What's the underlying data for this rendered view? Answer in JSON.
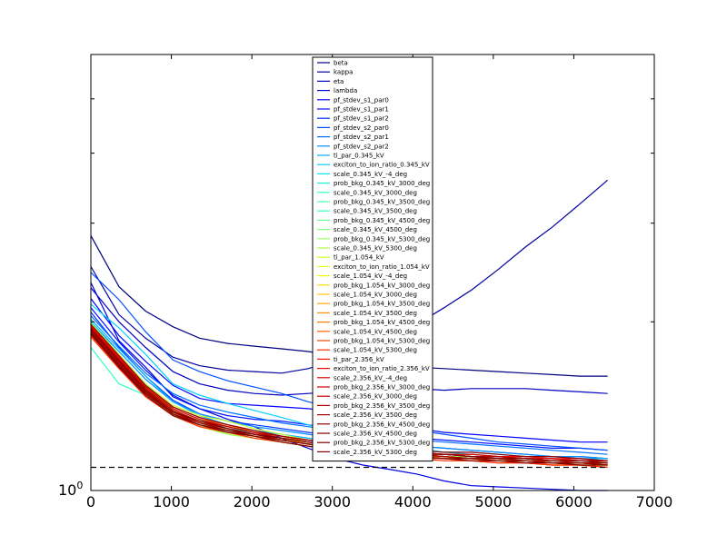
{
  "chart_data": {
    "type": "line",
    "title": "",
    "xlabel": "",
    "ylabel": "",
    "y_scale": "log",
    "xlim": [
      0,
      7000
    ],
    "ylim": [
      1.0,
      6.0
    ],
    "xticks": [
      0,
      1000,
      2000,
      3000,
      4000,
      5000,
      6000,
      7000
    ],
    "xtick_labels": [
      "0",
      "1000",
      "2000",
      "3000",
      "4000",
      "5000",
      "6000",
      "7000"
    ],
    "ytick_label": "10",
    "ytick_label_exp": "0",
    "reference_line": {
      "y": 1.1,
      "style": "dashed"
    },
    "legend_location": "upper center",
    "x": [
      0,
      350,
      680,
      1020,
      1350,
      1700,
      2030,
      2370,
      2700,
      3050,
      3380,
      3720,
      4050,
      4390,
      4730,
      5060,
      5400,
      5730,
      6080,
      6420
    ],
    "series": [
      {
        "name": "beta",
        "color": "#00007f",
        "values": [
          2.85,
          2.31,
          2.09,
          1.96,
          1.87,
          1.83,
          1.81,
          1.79,
          1.77,
          1.74,
          1.71,
          1.68,
          1.66,
          1.65,
          1.64,
          1.63,
          1.62,
          1.61,
          1.6,
          1.6
        ]
      },
      {
        "name": "kappa",
        "color": "#00009f",
        "values": [
          2.51,
          2.06,
          1.87,
          1.73,
          1.67,
          1.64,
          1.63,
          1.62,
          1.65,
          1.71,
          1.77,
          1.86,
          1.98,
          2.12,
          2.28,
          2.48,
          2.72,
          2.95,
          3.25,
          3.58
        ]
      },
      {
        "name": "eta",
        "color": "#0000bf",
        "values": [
          2.3,
          2.0,
          1.8,
          1.63,
          1.55,
          1.51,
          1.49,
          1.48,
          1.49,
          1.5,
          1.51,
          1.52,
          1.52,
          1.51,
          1.52,
          1.52,
          1.52,
          1.51,
          1.5,
          1.49
        ]
      },
      {
        "name": "lambda",
        "color": "#0000df",
        "values": [
          2.35,
          1.85,
          1.66,
          1.47,
          1.4,
          1.34,
          1.3,
          1.24,
          1.19,
          1.14,
          1.11,
          1.09,
          1.07,
          1.04,
          1.02,
          1.015,
          1.01,
          1.005,
          1.0,
          1.0
        ]
      },
      {
        "name": "pf_stdev_s1_par0",
        "color": "#0000ff",
        "values": [
          2.2,
          1.89,
          1.7,
          1.54,
          1.46,
          1.43,
          1.42,
          1.41,
          1.4,
          1.38,
          1.34,
          1.31,
          1.29,
          1.27,
          1.26,
          1.25,
          1.24,
          1.23,
          1.22,
          1.22
        ]
      },
      {
        "name": "pf_stdev_s1_par1",
        "color": "#0010ff",
        "values": [
          2.12,
          1.84,
          1.64,
          1.48,
          1.4,
          1.36,
          1.34,
          1.33,
          1.31,
          1.29,
          1.27,
          1.25,
          1.24,
          1.23,
          1.22,
          1.21,
          1.2,
          1.19,
          1.19,
          1.18
        ]
      },
      {
        "name": "pf_stdev_s1_par2",
        "color": "#0030ff",
        "values": [
          2.08,
          1.8,
          1.6,
          1.45,
          1.37,
          1.33,
          1.31,
          1.29,
          1.27,
          1.25,
          1.23,
          1.21,
          1.2,
          1.19,
          1.18,
          1.17,
          1.16,
          1.15,
          1.15,
          1.14
        ]
      },
      {
        "name": "pf_stdev_s2_par0",
        "color": "#0050ff",
        "values": [
          2.45,
          2.19,
          1.92,
          1.71,
          1.63,
          1.57,
          1.53,
          1.49,
          1.44,
          1.4,
          1.35,
          1.31,
          1.28,
          1.26,
          1.24,
          1.22,
          1.21,
          1.2,
          1.19,
          1.18
        ]
      },
      {
        "name": "pf_stdev_s2_par1",
        "color": "#0070ff",
        "values": [
          2.05,
          1.81,
          1.62,
          1.49,
          1.42,
          1.38,
          1.35,
          1.32,
          1.3,
          1.28,
          1.26,
          1.24,
          1.23,
          1.22,
          1.21,
          1.2,
          1.19,
          1.18,
          1.17,
          1.16
        ]
      },
      {
        "name": "pf_stdev_s2_par2",
        "color": "#0090ff",
        "values": [
          2.0,
          1.77,
          1.58,
          1.44,
          1.37,
          1.33,
          1.3,
          1.28,
          1.26,
          1.24,
          1.22,
          1.21,
          1.2,
          1.19,
          1.18,
          1.17,
          1.16,
          1.15,
          1.15,
          1.14
        ]
      },
      {
        "name": "ti_par_0.345_kV",
        "color": "#00b0ff",
        "values": [
          2.02,
          1.79,
          1.6,
          1.44,
          1.36,
          1.31,
          1.28,
          1.26,
          1.24,
          1.22,
          1.21,
          1.19,
          1.18,
          1.17,
          1.17,
          1.16,
          1.15,
          1.15,
          1.14,
          1.14
        ]
      },
      {
        "name": "exciton_to_ion_ratio_0.345_kV",
        "color": "#00d0ff",
        "values": [
          2.15,
          1.95,
          1.75,
          1.55,
          1.48,
          1.43,
          1.39,
          1.35,
          1.31,
          1.27,
          1.24,
          1.21,
          1.19,
          1.17,
          1.16,
          1.15,
          1.14,
          1.13,
          1.12,
          1.12
        ]
      },
      {
        "name": "scale_0.345_kV_-4_deg",
        "color": "#00e8f0",
        "values": [
          2.0,
          1.75,
          1.55,
          1.4,
          1.34,
          1.29,
          1.27,
          1.25,
          1.23,
          1.21,
          1.2,
          1.18,
          1.17,
          1.16,
          1.16,
          1.15,
          1.14,
          1.14,
          1.13,
          1.13
        ]
      },
      {
        "name": "prob_bkg_0.345_kV_3000_deg",
        "color": "#10f8e0",
        "values": [
          1.98,
          1.74,
          1.54,
          1.39,
          1.33,
          1.28,
          1.26,
          1.24,
          1.22,
          1.2,
          1.19,
          1.17,
          1.16,
          1.16,
          1.15,
          1.14,
          1.14,
          1.13,
          1.13,
          1.12
        ]
      },
      {
        "name": "scale_0.345_kV_3000_deg",
        "color": "#30ffc7",
        "values": [
          1.96,
          1.72,
          1.53,
          1.38,
          1.32,
          1.28,
          1.25,
          1.23,
          1.21,
          1.2,
          1.18,
          1.17,
          1.16,
          1.15,
          1.15,
          1.14,
          1.13,
          1.13,
          1.12,
          1.12
        ]
      },
      {
        "name": "prob_bkg_0.345_kV_3500_deg",
        "color": "#4affad",
        "values": [
          1.95,
          1.71,
          1.52,
          1.38,
          1.32,
          1.27,
          1.25,
          1.23,
          1.21,
          1.19,
          1.18,
          1.17,
          1.16,
          1.15,
          1.14,
          1.14,
          1.13,
          1.13,
          1.12,
          1.12
        ]
      },
      {
        "name": "scale_0.345_kV_3500_deg",
        "color": "#2fffc7",
        "values": [
          1.8,
          1.55,
          1.48,
          1.36,
          1.31,
          1.27,
          1.25,
          1.23,
          1.21,
          1.19,
          1.18,
          1.17,
          1.16,
          1.15,
          1.15,
          1.14,
          1.13,
          1.13,
          1.12,
          1.12
        ]
      },
      {
        "name": "prob_bkg_0.345_kV_4500_deg",
        "color": "#63ff94",
        "values": [
          1.94,
          1.7,
          1.51,
          1.37,
          1.31,
          1.27,
          1.24,
          1.22,
          1.2,
          1.19,
          1.17,
          1.16,
          1.15,
          1.15,
          1.14,
          1.13,
          1.13,
          1.12,
          1.12,
          1.11
        ]
      },
      {
        "name": "scale_0.345_kV_4500_deg",
        "color": "#7dff7a",
        "values": [
          1.93,
          1.69,
          1.51,
          1.37,
          1.31,
          1.26,
          1.24,
          1.22,
          1.2,
          1.18,
          1.17,
          1.16,
          1.15,
          1.14,
          1.14,
          1.13,
          1.13,
          1.12,
          1.12,
          1.11
        ]
      },
      {
        "name": "prob_bkg_0.345_kV_5300_deg",
        "color": "#97ff60",
        "values": [
          1.97,
          1.73,
          1.53,
          1.39,
          1.33,
          1.28,
          1.25,
          1.23,
          1.21,
          1.2,
          1.18,
          1.17,
          1.16,
          1.15,
          1.15,
          1.14,
          1.13,
          1.13,
          1.12,
          1.12
        ]
      },
      {
        "name": "scale_0.345_kV_5300_deg",
        "color": "#b0ff47",
        "values": [
          1.92,
          1.68,
          1.5,
          1.36,
          1.3,
          1.26,
          1.24,
          1.22,
          1.2,
          1.18,
          1.17,
          1.16,
          1.15,
          1.14,
          1.14,
          1.13,
          1.12,
          1.12,
          1.11,
          1.11
        ]
      },
      {
        "name": "ti_par_1.054_kV",
        "color": "#caff2d",
        "values": [
          1.99,
          1.75,
          1.55,
          1.42,
          1.36,
          1.33,
          1.29,
          1.26,
          1.23,
          1.21,
          1.19,
          1.18,
          1.17,
          1.16,
          1.15,
          1.14,
          1.14,
          1.13,
          1.13,
          1.12
        ]
      },
      {
        "name": "exciton_to_ion_ratio_1.054_kV",
        "color": "#e3ff13",
        "values": [
          1.96,
          1.72,
          1.53,
          1.41,
          1.35,
          1.31,
          1.28,
          1.25,
          1.22,
          1.2,
          1.18,
          1.17,
          1.16,
          1.15,
          1.14,
          1.14,
          1.13,
          1.13,
          1.12,
          1.12
        ]
      },
      {
        "name": "scale_1.054_kV_-4_deg",
        "color": "#f8f500",
        "values": [
          1.94,
          1.7,
          1.51,
          1.39,
          1.33,
          1.3,
          1.27,
          1.24,
          1.22,
          1.2,
          1.18,
          1.17,
          1.16,
          1.15,
          1.14,
          1.13,
          1.13,
          1.12,
          1.12,
          1.11
        ]
      },
      {
        "name": "prob_bkg_1.054_kV_3000_deg",
        "color": "#ffde00",
        "values": [
          1.93,
          1.69,
          1.5,
          1.38,
          1.32,
          1.29,
          1.26,
          1.24,
          1.21,
          1.19,
          1.18,
          1.16,
          1.15,
          1.15,
          1.14,
          1.13,
          1.13,
          1.12,
          1.12,
          1.11
        ]
      },
      {
        "name": "scale_1.054_kV_3000_deg",
        "color": "#ffc400",
        "values": [
          1.92,
          1.68,
          1.5,
          1.38,
          1.32,
          1.29,
          1.26,
          1.23,
          1.21,
          1.19,
          1.17,
          1.16,
          1.15,
          1.14,
          1.14,
          1.13,
          1.12,
          1.12,
          1.11,
          1.11
        ]
      },
      {
        "name": "prob_bkg_1.054_kV_3500_deg",
        "color": "#ffab00",
        "values": [
          1.91,
          1.67,
          1.49,
          1.37,
          1.31,
          1.28,
          1.25,
          1.23,
          1.21,
          1.19,
          1.17,
          1.16,
          1.15,
          1.14,
          1.13,
          1.13,
          1.12,
          1.12,
          1.11,
          1.11
        ]
      },
      {
        "name": "scale_1.054_kV_3500_deg",
        "color": "#ff9100",
        "values": [
          1.95,
          1.71,
          1.52,
          1.4,
          1.34,
          1.31,
          1.27,
          1.25,
          1.22,
          1.2,
          1.18,
          1.17,
          1.16,
          1.15,
          1.14,
          1.14,
          1.13,
          1.12,
          1.12,
          1.12
        ]
      },
      {
        "name": "prob_bkg_1.054_kV_4500_deg",
        "color": "#ff7800",
        "values": [
          1.9,
          1.66,
          1.49,
          1.37,
          1.31,
          1.28,
          1.25,
          1.22,
          1.2,
          1.18,
          1.17,
          1.16,
          1.15,
          1.14,
          1.13,
          1.13,
          1.12,
          1.11,
          1.11,
          1.1
        ]
      },
      {
        "name": "scale_1.054_kV_4500_deg",
        "color": "#ff5e00",
        "values": [
          1.89,
          1.66,
          1.48,
          1.36,
          1.3,
          1.27,
          1.25,
          1.22,
          1.2,
          1.18,
          1.17,
          1.15,
          1.14,
          1.14,
          1.13,
          1.12,
          1.12,
          1.11,
          1.11,
          1.1
        ]
      },
      {
        "name": "prob_bkg_1.054_kV_5300_deg",
        "color": "#ff4500",
        "values": [
          1.93,
          1.69,
          1.5,
          1.38,
          1.32,
          1.29,
          1.26,
          1.23,
          1.21,
          1.19,
          1.18,
          1.16,
          1.15,
          1.15,
          1.14,
          1.13,
          1.13,
          1.12,
          1.12,
          1.11
        ]
      },
      {
        "name": "scale_1.054_kV_5300_deg",
        "color": "#ff2b00",
        "values": [
          1.88,
          1.65,
          1.47,
          1.36,
          1.3,
          1.27,
          1.24,
          1.22,
          1.2,
          1.18,
          1.16,
          1.15,
          1.14,
          1.13,
          1.13,
          1.12,
          1.12,
          1.11,
          1.11,
          1.1
        ]
      },
      {
        "name": "ti_par_2.356_kV",
        "color": "#ff1200",
        "values": [
          1.97,
          1.73,
          1.54,
          1.41,
          1.35,
          1.31,
          1.28,
          1.25,
          1.23,
          1.21,
          1.19,
          1.18,
          1.17,
          1.16,
          1.16,
          1.15,
          1.15,
          1.14,
          1.14,
          1.13
        ]
      },
      {
        "name": "exciton_to_ion_ratio_2.356_kV",
        "color": "#f80000",
        "values": [
          1.95,
          1.71,
          1.52,
          1.39,
          1.33,
          1.3,
          1.27,
          1.24,
          1.22,
          1.2,
          1.19,
          1.18,
          1.17,
          1.16,
          1.15,
          1.15,
          1.14,
          1.14,
          1.13,
          1.13
        ]
      },
      {
        "name": "scale_2.356_kV_-4_deg",
        "color": "#e80000",
        "values": [
          1.94,
          1.7,
          1.51,
          1.38,
          1.33,
          1.29,
          1.26,
          1.24,
          1.22,
          1.2,
          1.18,
          1.17,
          1.16,
          1.16,
          1.15,
          1.14,
          1.14,
          1.13,
          1.13,
          1.12
        ]
      },
      {
        "name": "prob_bkg_2.356_kV_3000_deg",
        "color": "#d60000",
        "values": [
          1.96,
          1.72,
          1.53,
          1.4,
          1.34,
          1.3,
          1.27,
          1.25,
          1.23,
          1.21,
          1.19,
          1.18,
          1.17,
          1.16,
          1.16,
          1.15,
          1.14,
          1.14,
          1.13,
          1.13
        ]
      },
      {
        "name": "scale_2.356_kV_3000_deg",
        "color": "#c40000",
        "values": [
          1.93,
          1.69,
          1.5,
          1.38,
          1.32,
          1.29,
          1.26,
          1.24,
          1.22,
          1.2,
          1.18,
          1.17,
          1.16,
          1.15,
          1.14,
          1.14,
          1.13,
          1.13,
          1.12,
          1.12
        ]
      },
      {
        "name": "prob_bkg_2.356_kV_3500_deg",
        "color": "#b20000",
        "values": [
          1.95,
          1.71,
          1.52,
          1.39,
          1.33,
          1.3,
          1.27,
          1.24,
          1.22,
          1.2,
          1.19,
          1.18,
          1.17,
          1.16,
          1.15,
          1.15,
          1.14,
          1.13,
          1.13,
          1.13
        ]
      },
      {
        "name": "scale_2.356_kV_3500_deg",
        "color": "#a00000",
        "values": [
          1.92,
          1.68,
          1.5,
          1.37,
          1.32,
          1.28,
          1.26,
          1.23,
          1.21,
          1.19,
          1.18,
          1.17,
          1.16,
          1.15,
          1.14,
          1.14,
          1.13,
          1.12,
          1.12,
          1.12
        ]
      },
      {
        "name": "prob_bkg_2.356_kV_4500_deg",
        "color": "#8e0000",
        "values": [
          1.98,
          1.74,
          1.54,
          1.41,
          1.35,
          1.31,
          1.28,
          1.25,
          1.23,
          1.21,
          1.2,
          1.19,
          1.18,
          1.17,
          1.17,
          1.16,
          1.15,
          1.15,
          1.14,
          1.13
        ]
      },
      {
        "name": "scale_2.356_kV_4500_deg",
        "color": "#800000",
        "values": [
          1.91,
          1.67,
          1.49,
          1.37,
          1.31,
          1.28,
          1.25,
          1.23,
          1.21,
          1.19,
          1.17,
          1.16,
          1.15,
          1.14,
          1.14,
          1.13,
          1.13,
          1.12,
          1.12,
          1.11
        ]
      },
      {
        "name": "prob_bkg_2.356_kV_5300_deg",
        "color": "#7a0000",
        "values": [
          1.94,
          1.7,
          1.51,
          1.38,
          1.33,
          1.29,
          1.26,
          1.24,
          1.22,
          1.2,
          1.19,
          1.17,
          1.16,
          1.16,
          1.15,
          1.14,
          1.14,
          1.13,
          1.13,
          1.12
        ]
      },
      {
        "name": "scale_2.356_kV_5300_deg",
        "color": "#7f0000",
        "values": [
          1.9,
          1.66,
          1.48,
          1.36,
          1.31,
          1.27,
          1.25,
          1.22,
          1.2,
          1.18,
          1.17,
          1.16,
          1.15,
          1.14,
          1.13,
          1.13,
          1.12,
          1.12,
          1.11,
          1.11
        ]
      }
    ]
  }
}
